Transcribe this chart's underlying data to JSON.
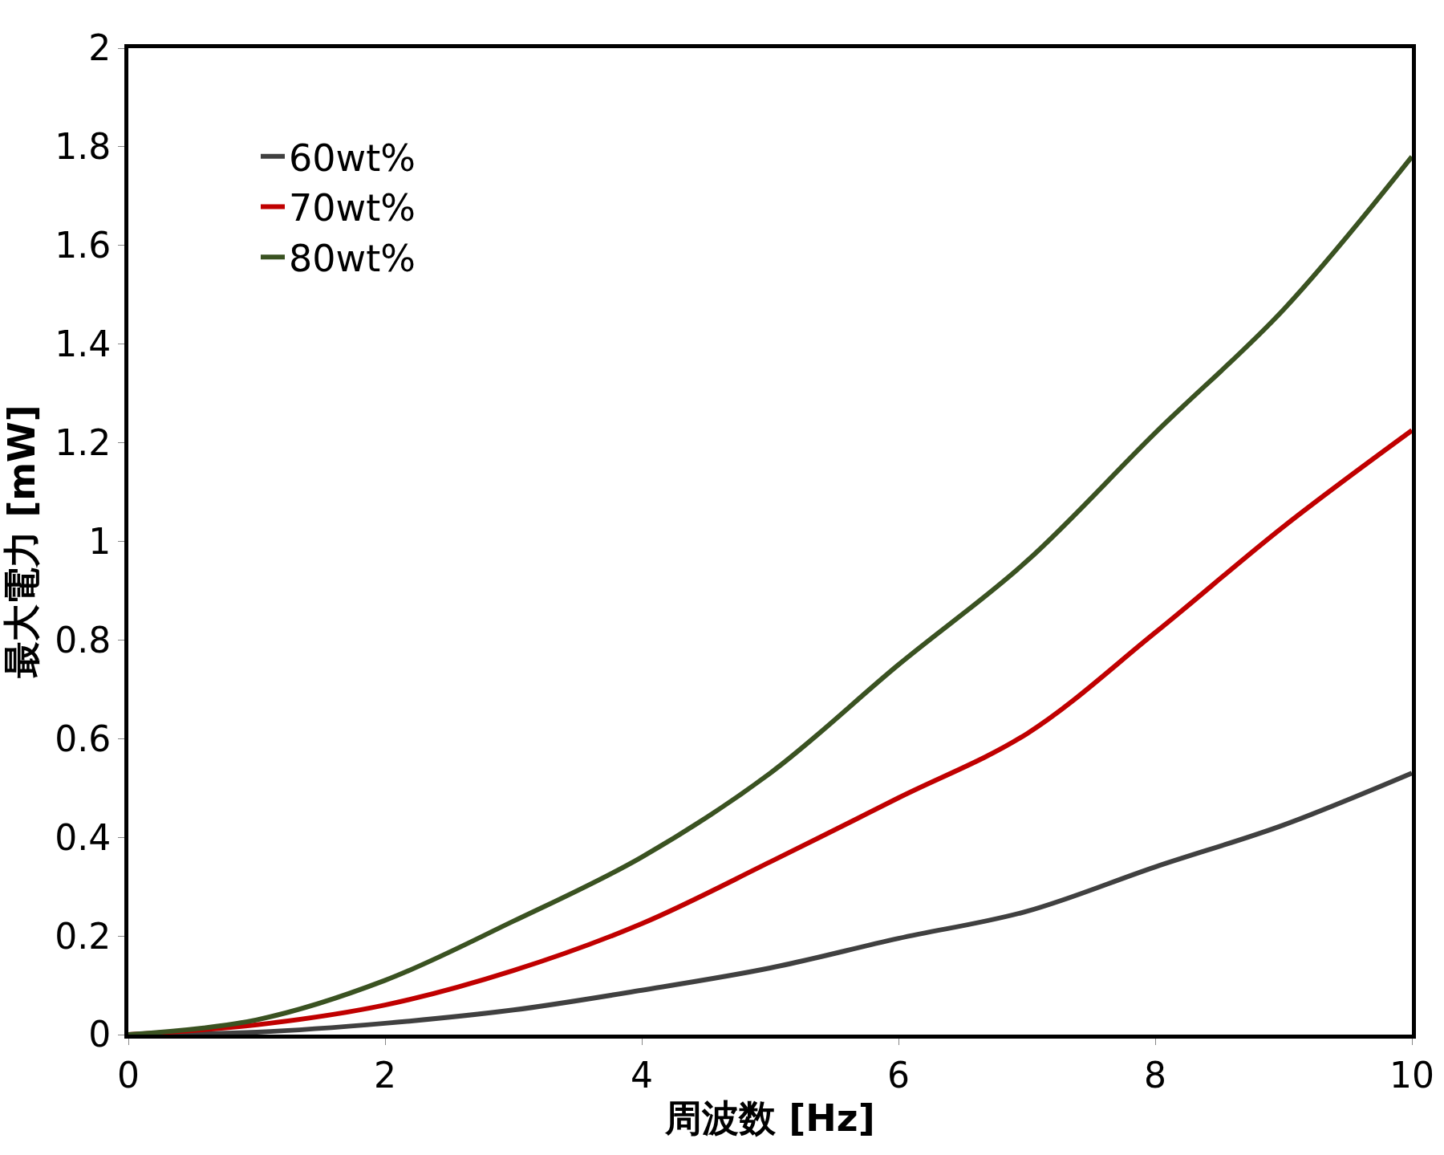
{
  "chart_data": {
    "type": "line",
    "xlabel": "周波数 [Hz]",
    "ylabel": "最大電力 [mW]",
    "x": [
      0,
      1,
      2,
      3,
      4,
      5,
      6,
      7,
      8,
      9,
      10
    ],
    "series": [
      {
        "name": "60wt%",
        "color": "#404040",
        "values": [
          0,
          0.005,
          0.023,
          0.05,
          0.09,
          0.135,
          0.195,
          0.25,
          0.34,
          0.425,
          0.53
        ]
      },
      {
        "name": "70wt%",
        "color": "#c00000",
        "values": [
          0,
          0.02,
          0.06,
          0.13,
          0.225,
          0.35,
          0.48,
          0.61,
          0.815,
          1.03,
          1.225
        ]
      },
      {
        "name": "80wt%",
        "color": "#3a5221",
        "values": [
          0,
          0.03,
          0.11,
          0.23,
          0.36,
          0.53,
          0.75,
          0.96,
          1.22,
          1.47,
          1.78
        ]
      }
    ],
    "xlim": [
      0,
      10
    ],
    "xticks": [
      0,
      2,
      4,
      6,
      8,
      10
    ],
    "ylim": [
      0,
      2
    ],
    "yticks": [
      0,
      0.2,
      0.4,
      0.6,
      0.8,
      1,
      1.2,
      1.4,
      1.6,
      1.8,
      2
    ],
    "legend": "top left",
    "marker": "none",
    "line_style": "solid"
  }
}
